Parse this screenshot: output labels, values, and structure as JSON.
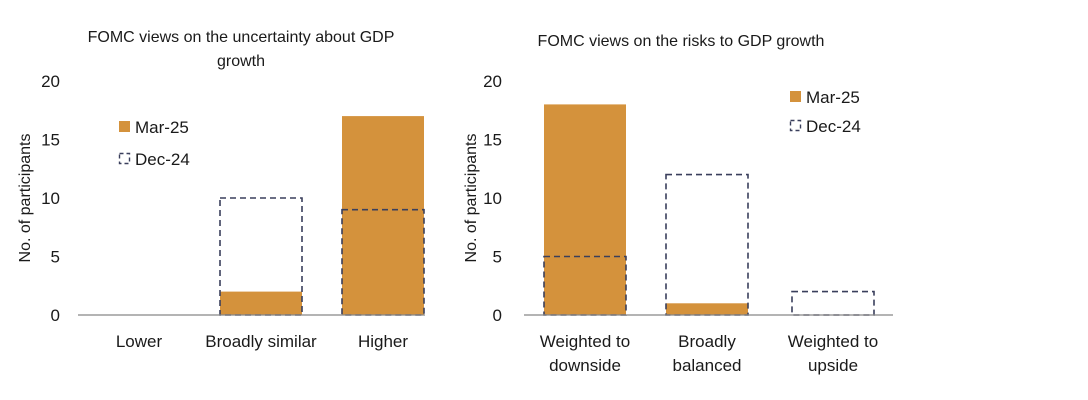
{
  "chart_data": [
    {
      "type": "bar",
      "title": "FOMC views on the uncertainty about GDP growth",
      "title_lines": [
        "FOMC views on the uncertainty about GDP",
        "growth"
      ],
      "ylabel": "No. of participants",
      "xlabel": "",
      "ylim": [
        0,
        20
      ],
      "yticks": [
        0,
        5,
        10,
        15,
        20
      ],
      "categories": [
        "Lower",
        "Broadly similar",
        "Higher"
      ],
      "category_lines": [
        [
          "Lower"
        ],
        [
          "Broadly similar"
        ],
        [
          "Higher"
        ]
      ],
      "series": [
        {
          "name": "Mar-25",
          "style": "filled",
          "values": [
            0,
            2,
            17
          ]
        },
        {
          "name": "Dec-24",
          "style": "dashed-outline",
          "values": [
            0,
            10,
            9
          ]
        }
      ],
      "legend_position": "upper-left"
    },
    {
      "type": "bar",
      "title": "FOMC views on the risks to GDP growth",
      "title_lines": [
        "FOMC views on the risks to GDP growth"
      ],
      "ylabel": "No. of participants",
      "xlabel": "",
      "ylim": [
        0,
        20
      ],
      "yticks": [
        0,
        5,
        10,
        15,
        20
      ],
      "categories": [
        "Weighted to downside",
        "Broadly balanced",
        "Weighted to upside"
      ],
      "category_lines": [
        [
          "Weighted to",
          "downside"
        ],
        [
          "Broadly",
          "balanced"
        ],
        [
          "Weighted to",
          "upside"
        ]
      ],
      "series": [
        {
          "name": "Mar-25",
          "style": "filled",
          "values": [
            18,
            1,
            0
          ]
        },
        {
          "name": "Dec-24",
          "style": "dashed-outline",
          "values": [
            5,
            12,
            2
          ]
        }
      ],
      "legend_position": "upper-right"
    }
  ],
  "colors": {
    "mar25_fill": "#D4923C",
    "dec24_outline": "#3A3F5C",
    "axis": "#888888",
    "text": "#1a1a1a"
  }
}
